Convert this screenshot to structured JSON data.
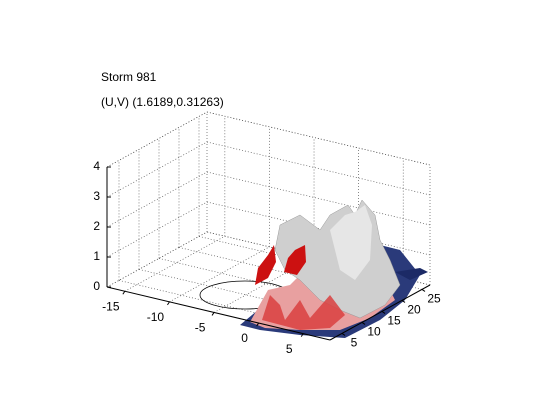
{
  "chart_data": {
    "type": "surface3d",
    "title": "Storm 981",
    "subtitle": "(U,V) (1.6189,0.31263)",
    "xlim": [
      -17,
      8
    ],
    "ylim": [
      2,
      27
    ],
    "zlim": [
      0,
      4
    ],
    "xticks": [
      -15,
      -10,
      -5,
      0,
      5
    ],
    "yticks": [
      5,
      10,
      15,
      20,
      25
    ],
    "zticks": [
      0,
      1,
      2,
      3,
      4
    ],
    "grid": true
  }
}
